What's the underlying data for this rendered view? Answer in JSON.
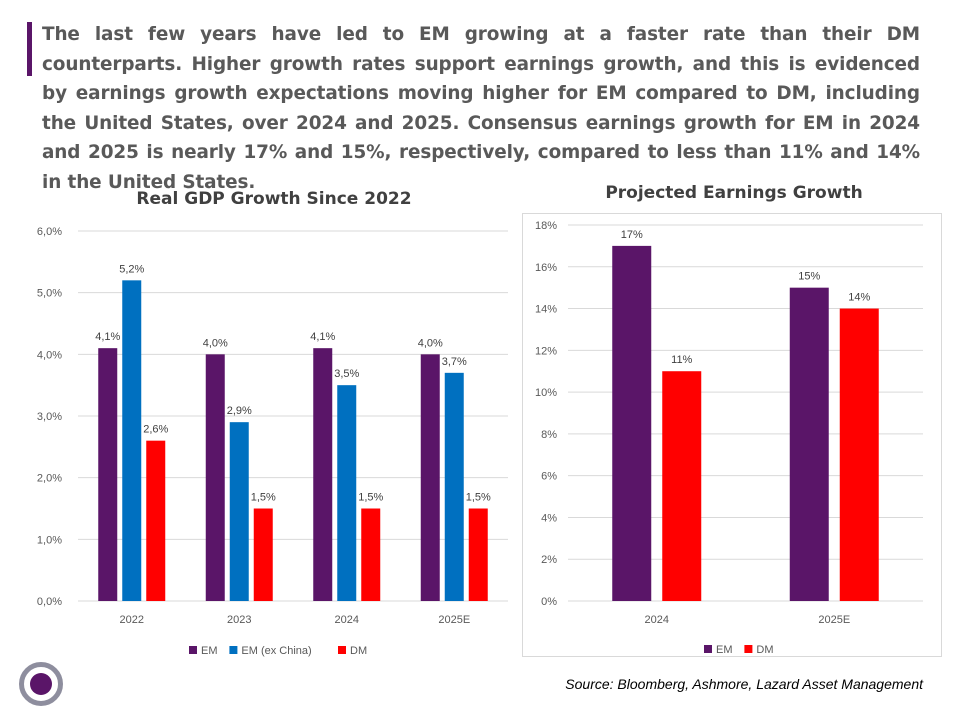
{
  "intro_text": "The last few years have led to EM growing at a faster rate than their DM counterparts. Higher growth rates support earnings growth, and this is evidenced by earnings growth expectations moving higher for EM compared to DM, including the United States, over 2024 and 2025. Consensus earnings growth for EM in 2024 and 2025 is nearly 17% and 15%, respectively, compared to less than 11% and 14% in the United States.",
  "source": "Source: Bloomberg, Ashmore, Lazard Asset Management",
  "colors": {
    "em": "#5a1568",
    "em_ex_china": "#0070c0",
    "dm": "#ff0000",
    "accent": "#5a1568"
  },
  "chart_data": [
    {
      "type": "bar",
      "title": "Real GDP Growth Since 2022",
      "categories": [
        "2022",
        "2023",
        "2024",
        "2025E"
      ],
      "series": [
        {
          "name": "EM",
          "values": [
            4.1,
            4.0,
            4.1,
            4.0
          ],
          "labels": [
            "4,1%",
            "4,0%",
            "4,1%",
            "4,0%"
          ]
        },
        {
          "name": "EM (ex China)",
          "values": [
            5.2,
            2.9,
            3.5,
            3.7
          ],
          "labels": [
            "5,2%",
            "2,9%",
            "3,5%",
            "3,7%"
          ]
        },
        {
          "name": "DM",
          "values": [
            2.6,
            1.5,
            1.5,
            1.5
          ],
          "labels": [
            "2,6%",
            "1,5%",
            "1,5%",
            "1,5%"
          ]
        }
      ],
      "yticks": [
        "0,0%",
        "1,0%",
        "2,0%",
        "3,0%",
        "4,0%",
        "5,0%",
        "6,0%"
      ],
      "ylim": [
        0,
        6
      ],
      "grid": true,
      "legend": "bottom"
    },
    {
      "type": "bar",
      "title": "Projected Earnings Growth",
      "categories": [
        "2024",
        "2025E"
      ],
      "series": [
        {
          "name": "EM",
          "values": [
            17,
            15
          ],
          "labels": [
            "17%",
            "15%"
          ]
        },
        {
          "name": "DM",
          "values": [
            11,
            14
          ],
          "labels": [
            "11%",
            "14%"
          ]
        }
      ],
      "yticks": [
        "0%",
        "2%",
        "4%",
        "6%",
        "8%",
        "10%",
        "12%",
        "14%",
        "16%",
        "18%"
      ],
      "ylim": [
        0,
        18
      ],
      "grid": true,
      "legend": "bottom"
    }
  ]
}
